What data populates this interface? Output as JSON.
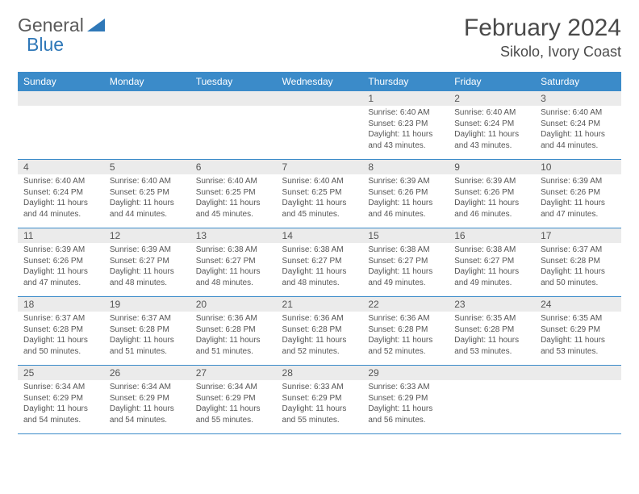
{
  "logo": {
    "part1": "General",
    "part2": "Blue"
  },
  "title": "February 2024",
  "location": "Sikolo, Ivory Coast",
  "colors": {
    "header_bg": "#3b8bc9",
    "header_text": "#ffffff",
    "daynum_bg": "#ebebeb",
    "border": "#3b8bc9",
    "text": "#555555"
  },
  "labels": {
    "sunrise": "Sunrise:",
    "sunset": "Sunset:",
    "daylight": "Daylight:"
  },
  "weekdays": [
    "Sunday",
    "Monday",
    "Tuesday",
    "Wednesday",
    "Thursday",
    "Friday",
    "Saturday"
  ],
  "weeks": [
    [
      null,
      null,
      null,
      null,
      {
        "n": "1",
        "sr": "6:40 AM",
        "ss": "6:23 PM",
        "dl": "11 hours and 43 minutes."
      },
      {
        "n": "2",
        "sr": "6:40 AM",
        "ss": "6:24 PM",
        "dl": "11 hours and 43 minutes."
      },
      {
        "n": "3",
        "sr": "6:40 AM",
        "ss": "6:24 PM",
        "dl": "11 hours and 44 minutes."
      }
    ],
    [
      {
        "n": "4",
        "sr": "6:40 AM",
        "ss": "6:24 PM",
        "dl": "11 hours and 44 minutes."
      },
      {
        "n": "5",
        "sr": "6:40 AM",
        "ss": "6:25 PM",
        "dl": "11 hours and 44 minutes."
      },
      {
        "n": "6",
        "sr": "6:40 AM",
        "ss": "6:25 PM",
        "dl": "11 hours and 45 minutes."
      },
      {
        "n": "7",
        "sr": "6:40 AM",
        "ss": "6:25 PM",
        "dl": "11 hours and 45 minutes."
      },
      {
        "n": "8",
        "sr": "6:39 AM",
        "ss": "6:26 PM",
        "dl": "11 hours and 46 minutes."
      },
      {
        "n": "9",
        "sr": "6:39 AM",
        "ss": "6:26 PM",
        "dl": "11 hours and 46 minutes."
      },
      {
        "n": "10",
        "sr": "6:39 AM",
        "ss": "6:26 PM",
        "dl": "11 hours and 47 minutes."
      }
    ],
    [
      {
        "n": "11",
        "sr": "6:39 AM",
        "ss": "6:26 PM",
        "dl": "11 hours and 47 minutes."
      },
      {
        "n": "12",
        "sr": "6:39 AM",
        "ss": "6:27 PM",
        "dl": "11 hours and 48 minutes."
      },
      {
        "n": "13",
        "sr": "6:38 AM",
        "ss": "6:27 PM",
        "dl": "11 hours and 48 minutes."
      },
      {
        "n": "14",
        "sr": "6:38 AM",
        "ss": "6:27 PM",
        "dl": "11 hours and 48 minutes."
      },
      {
        "n": "15",
        "sr": "6:38 AM",
        "ss": "6:27 PM",
        "dl": "11 hours and 49 minutes."
      },
      {
        "n": "16",
        "sr": "6:38 AM",
        "ss": "6:27 PM",
        "dl": "11 hours and 49 minutes."
      },
      {
        "n": "17",
        "sr": "6:37 AM",
        "ss": "6:28 PM",
        "dl": "11 hours and 50 minutes."
      }
    ],
    [
      {
        "n": "18",
        "sr": "6:37 AM",
        "ss": "6:28 PM",
        "dl": "11 hours and 50 minutes."
      },
      {
        "n": "19",
        "sr": "6:37 AM",
        "ss": "6:28 PM",
        "dl": "11 hours and 51 minutes."
      },
      {
        "n": "20",
        "sr": "6:36 AM",
        "ss": "6:28 PM",
        "dl": "11 hours and 51 minutes."
      },
      {
        "n": "21",
        "sr": "6:36 AM",
        "ss": "6:28 PM",
        "dl": "11 hours and 52 minutes."
      },
      {
        "n": "22",
        "sr": "6:36 AM",
        "ss": "6:28 PM",
        "dl": "11 hours and 52 minutes."
      },
      {
        "n": "23",
        "sr": "6:35 AM",
        "ss": "6:28 PM",
        "dl": "11 hours and 53 minutes."
      },
      {
        "n": "24",
        "sr": "6:35 AM",
        "ss": "6:29 PM",
        "dl": "11 hours and 53 minutes."
      }
    ],
    [
      {
        "n": "25",
        "sr": "6:34 AM",
        "ss": "6:29 PM",
        "dl": "11 hours and 54 minutes."
      },
      {
        "n": "26",
        "sr": "6:34 AM",
        "ss": "6:29 PM",
        "dl": "11 hours and 54 minutes."
      },
      {
        "n": "27",
        "sr": "6:34 AM",
        "ss": "6:29 PM",
        "dl": "11 hours and 55 minutes."
      },
      {
        "n": "28",
        "sr": "6:33 AM",
        "ss": "6:29 PM",
        "dl": "11 hours and 55 minutes."
      },
      {
        "n": "29",
        "sr": "6:33 AM",
        "ss": "6:29 PM",
        "dl": "11 hours and 56 minutes."
      },
      null,
      null
    ]
  ]
}
